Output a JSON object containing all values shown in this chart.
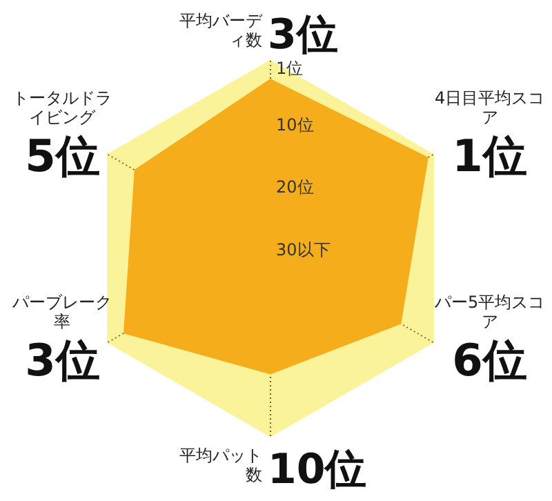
{
  "chart_data": {
    "type": "radar",
    "categories": [
      "平均バーディ数",
      "4日目平均スコア",
      "パー5平均スコア",
      "平均パット数",
      "パーブレーク率",
      "トータルドライビング"
    ],
    "series": [
      {
        "color": "#f5ad1b",
        "values": [
          3,
          1,
          6,
          10,
          3,
          5
        ]
      }
    ],
    "value_labels": [
      "3位",
      "1位",
      "6位",
      "10位",
      "3位",
      "5位"
    ],
    "ylim": [
      30,
      0
    ],
    "yticks": [
      {
        "value": 1,
        "label": "1位"
      },
      {
        "value": 10,
        "label": "10位"
      },
      {
        "value": 20,
        "label": "20位"
      },
      {
        "value": 30,
        "label": "30以下"
      }
    ],
    "grid": true,
    "legend": false
  }
}
